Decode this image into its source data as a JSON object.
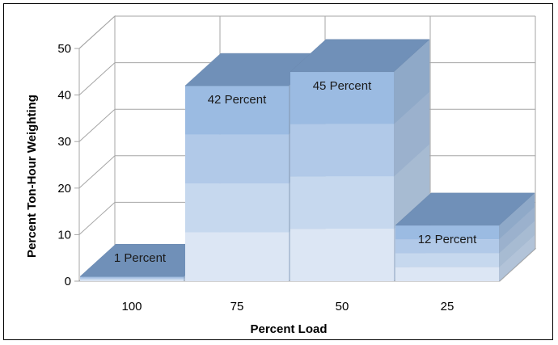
{
  "chart_data": {
    "type": "bar",
    "style": "3d-stacked-gradient",
    "categories": [
      "100",
      "75",
      "50",
      "25"
    ],
    "values": [
      1,
      42,
      45,
      12
    ],
    "data_labels": [
      "1 Percent",
      "42 Percent",
      "45 Percent",
      "12 Percent"
    ],
    "title": "",
    "xlabel": "Percent Load",
    "ylabel": "Percent Ton-Hour Weighting",
    "ylim": [
      0,
      50
    ],
    "yticks": [
      0,
      10,
      20,
      30,
      40,
      50
    ],
    "grid": true,
    "legend": "none",
    "colors": {
      "top": "#7090B8",
      "side": "#8FA9C8",
      "floor": "#D8D8D8",
      "band_top": "#9BBBE2",
      "band_bottom": "#DCE6F4",
      "grid": "#A6A6A6"
    }
  }
}
